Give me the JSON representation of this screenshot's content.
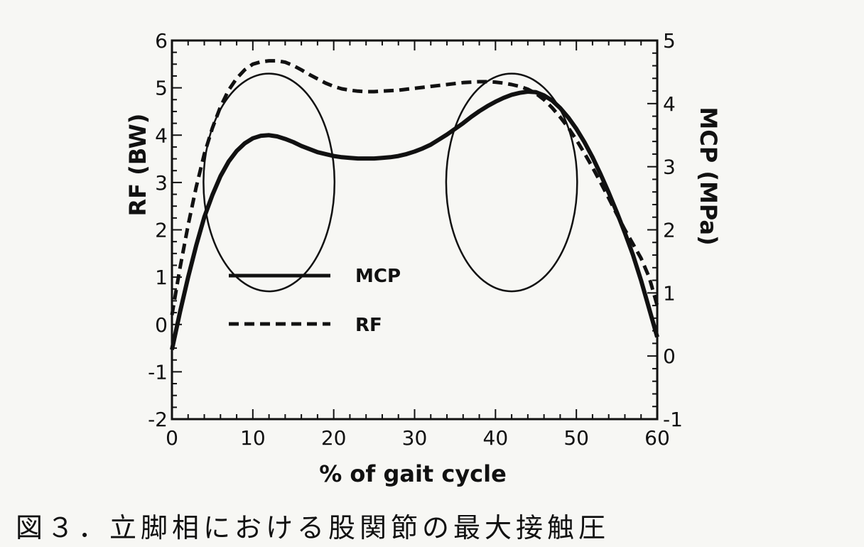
{
  "caption": "図３．立脚相における股関節の最大接触圧",
  "chart_data": {
    "type": "line",
    "xlabel": "% of gait cycle",
    "ylabel_left": "RF (BW)",
    "ylabel_right": "MCP (MPa)",
    "x_ticks": [
      "0",
      "10",
      "20",
      "30",
      "40",
      "50",
      "60"
    ],
    "y_left_ticks": [
      "-2",
      "-1",
      "0",
      "1",
      "2",
      "3",
      "4",
      "5",
      "6"
    ],
    "y_right_ticks": [
      "-1",
      "0",
      "1",
      "2",
      "3",
      "4",
      "5"
    ],
    "xlim": [
      0,
      60
    ],
    "ylim_left": [
      -2,
      6
    ],
    "ylim_right": [
      -1,
      5
    ],
    "legend": {
      "placement": "inside-lower-left"
    },
    "series": [
      {
        "name": "MCP",
        "axis": "right",
        "style": "solid",
        "color": "#111111",
        "x": [
          0,
          1,
          2,
          3,
          4,
          5,
          6,
          7,
          8,
          9,
          10,
          11,
          12,
          13,
          14,
          15,
          16,
          17,
          18,
          19,
          20,
          21,
          22,
          23,
          24,
          25,
          26,
          27,
          28,
          29,
          30,
          31,
          32,
          33,
          34,
          35,
          36,
          37,
          38,
          39,
          40,
          41,
          42,
          43,
          44,
          45,
          46,
          47,
          48,
          49,
          50,
          51,
          52,
          53,
          54,
          55,
          56,
          57,
          58,
          59,
          60
        ],
        "values": [
          0.1,
          0.7,
          1.25,
          1.75,
          2.2,
          2.55,
          2.85,
          3.08,
          3.25,
          3.37,
          3.45,
          3.49,
          3.5,
          3.48,
          3.44,
          3.39,
          3.33,
          3.28,
          3.23,
          3.2,
          3.17,
          3.15,
          3.14,
          3.13,
          3.13,
          3.13,
          3.14,
          3.15,
          3.17,
          3.2,
          3.24,
          3.29,
          3.35,
          3.43,
          3.51,
          3.6,
          3.69,
          3.79,
          3.88,
          3.96,
          4.03,
          4.09,
          4.14,
          4.17,
          4.19,
          4.18,
          4.13,
          4.05,
          3.93,
          3.78,
          3.6,
          3.39,
          3.15,
          2.88,
          2.59,
          2.28,
          1.95,
          1.6,
          1.2,
          0.75,
          0.3
        ]
      },
      {
        "name": "RF",
        "axis": "left",
        "style": "dashed",
        "color": "#111111",
        "x": [
          0,
          1,
          2,
          3,
          4,
          5,
          6,
          7,
          8,
          9,
          10,
          11,
          12,
          13,
          14,
          15,
          16,
          17,
          18,
          19,
          20,
          21,
          22,
          23,
          24,
          25,
          26,
          27,
          28,
          29,
          30,
          31,
          32,
          33,
          34,
          35,
          36,
          37,
          38,
          39,
          40,
          41,
          42,
          43,
          44,
          45,
          46,
          47,
          48,
          49,
          50,
          51,
          52,
          53,
          54,
          55,
          56,
          57,
          58,
          59,
          60
        ],
        "values": [
          0.2,
          1.2,
          2.1,
          2.9,
          3.6,
          4.15,
          4.6,
          4.95,
          5.2,
          5.38,
          5.5,
          5.55,
          5.57,
          5.57,
          5.54,
          5.47,
          5.38,
          5.28,
          5.19,
          5.1,
          5.03,
          4.98,
          4.95,
          4.93,
          4.92,
          4.92,
          4.93,
          4.94,
          4.95,
          4.97,
          4.99,
          5.01,
          5.03,
          5.05,
          5.07,
          5.09,
          5.11,
          5.12,
          5.13,
          5.13,
          5.12,
          5.1,
          5.07,
          5.03,
          4.97,
          4.88,
          4.75,
          4.58,
          4.38,
          4.16,
          3.9,
          3.62,
          3.32,
          3.0,
          2.67,
          2.33,
          2.0,
          1.7,
          1.4,
          1.0,
          0.4
        ]
      }
    ],
    "annotations": [
      {
        "type": "ellipse",
        "x_center": 12,
        "y_center_left": 3.0,
        "x_radius": 8.1,
        "y_radius_left": 2.3
      },
      {
        "type": "ellipse",
        "x_center": 42,
        "y_center_left": 3.0,
        "x_radius": 8.1,
        "y_radius_left": 2.3
      }
    ]
  }
}
